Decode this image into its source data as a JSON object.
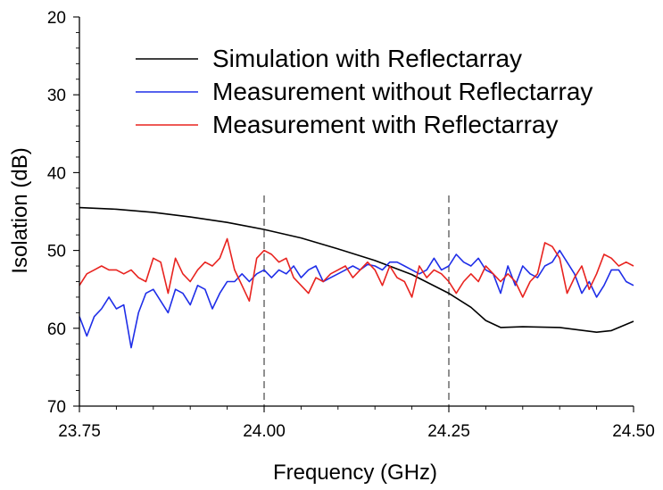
{
  "chart_data": {
    "type": "line",
    "title": "",
    "xlabel": "Frequency (GHz)",
    "ylabel": "Isolation (dB)",
    "xlim": [
      23.75,
      24.5
    ],
    "ylim": [
      20,
      70
    ],
    "y_inverted": true,
    "x_ticks": [
      {
        "value": 23.75,
        "label": "23.75"
      },
      {
        "value": 24.0,
        "label": "24.00"
      },
      {
        "value": 24.25,
        "label": "24.25"
      },
      {
        "value": 24.5,
        "label": "24.50"
      }
    ],
    "y_ticks": [
      {
        "value": 20,
        "label": "20"
      },
      {
        "value": 30,
        "label": "30"
      },
      {
        "value": 40,
        "label": "40"
      },
      {
        "value": 50,
        "label": "50"
      },
      {
        "value": 60,
        "label": "60"
      },
      {
        "value": 70,
        "label": "70"
      }
    ],
    "reference_lines_x": [
      24.0,
      24.25
    ],
    "legend_position": "top-right",
    "series": [
      {
        "name": "Simulation with Reflectarray",
        "color": "#000000",
        "x": [
          23.75,
          23.8,
          23.85,
          23.9,
          23.95,
          24.0,
          24.05,
          24.1,
          24.15,
          24.2,
          24.25,
          24.28,
          24.3,
          24.32,
          24.35,
          24.4,
          24.45,
          24.47,
          24.5
        ],
        "y": [
          44.5,
          44.7,
          45.1,
          45.7,
          46.4,
          47.3,
          48.4,
          49.8,
          51.3,
          53.1,
          55.5,
          57.3,
          59.0,
          59.9,
          59.8,
          59.9,
          60.5,
          60.3,
          59.1
        ]
      },
      {
        "name": "Measurement without Reflectarray",
        "color": "#1f2ee8",
        "x": [
          23.75,
          23.76,
          23.77,
          23.78,
          23.79,
          23.8,
          23.81,
          23.82,
          23.83,
          23.84,
          23.85,
          23.86,
          23.87,
          23.88,
          23.89,
          23.9,
          23.91,
          23.92,
          23.93,
          23.94,
          23.95,
          23.96,
          23.97,
          23.98,
          23.99,
          24.0,
          24.01,
          24.02,
          24.03,
          24.04,
          24.05,
          24.06,
          24.07,
          24.08,
          24.09,
          24.1,
          24.11,
          24.12,
          24.13,
          24.14,
          24.15,
          24.16,
          24.17,
          24.18,
          24.19,
          24.2,
          24.21,
          24.22,
          24.23,
          24.24,
          24.25,
          24.26,
          24.27,
          24.28,
          24.29,
          24.3,
          24.31,
          24.32,
          24.33,
          24.34,
          24.35,
          24.36,
          24.37,
          24.38,
          24.39,
          24.4,
          24.41,
          24.42,
          24.43,
          24.44,
          24.45,
          24.46,
          24.47,
          24.48,
          24.49,
          24.5
        ],
        "y": [
          58.5,
          61.0,
          58.5,
          57.5,
          56.0,
          57.5,
          57.0,
          62.5,
          58.0,
          55.5,
          55.0,
          56.5,
          58.0,
          55.0,
          55.5,
          57.0,
          54.5,
          55.0,
          57.5,
          55.5,
          54.0,
          54.0,
          53.0,
          54.0,
          53.0,
          52.5,
          53.5,
          52.5,
          53.0,
          52.0,
          53.5,
          52.5,
          52.0,
          54.0,
          53.5,
          53.0,
          52.5,
          52.0,
          52.5,
          51.8,
          52.0,
          52.5,
          51.5,
          51.5,
          52.0,
          52.5,
          53.0,
          52.5,
          51.0,
          52.5,
          52.0,
          50.5,
          51.5,
          52.0,
          51.0,
          52.5,
          53.0,
          55.5,
          52.0,
          54.5,
          52.0,
          53.0,
          53.5,
          52.0,
          51.5,
          50.0,
          51.5,
          53.0,
          55.5,
          54.0,
          56.0,
          54.5,
          52.5,
          52.5,
          54.0,
          54.5
        ]
      },
      {
        "name": "Measurement with Reflectarray",
        "color": "#e8231f",
        "x": [
          23.75,
          23.76,
          23.77,
          23.78,
          23.79,
          23.8,
          23.81,
          23.82,
          23.83,
          23.84,
          23.85,
          23.86,
          23.87,
          23.88,
          23.89,
          23.9,
          23.91,
          23.92,
          23.93,
          23.94,
          23.95,
          23.96,
          23.97,
          23.98,
          23.99,
          24.0,
          24.01,
          24.02,
          24.03,
          24.04,
          24.05,
          24.06,
          24.07,
          24.08,
          24.09,
          24.1,
          24.11,
          24.12,
          24.13,
          24.14,
          24.15,
          24.16,
          24.17,
          24.18,
          24.19,
          24.2,
          24.21,
          24.22,
          24.23,
          24.24,
          24.25,
          24.26,
          24.27,
          24.28,
          24.29,
          24.3,
          24.31,
          24.32,
          24.33,
          24.34,
          24.35,
          24.36,
          24.37,
          24.38,
          24.39,
          24.4,
          24.41,
          24.42,
          24.43,
          24.44,
          24.45,
          24.46,
          24.47,
          24.48,
          24.49,
          24.5
        ],
        "y": [
          54.5,
          53.0,
          52.5,
          52.0,
          52.5,
          52.5,
          53.0,
          52.5,
          53.5,
          54.0,
          51.0,
          51.5,
          55.5,
          51.0,
          53.0,
          54.0,
          52.5,
          51.5,
          52.0,
          51.0,
          48.5,
          52.5,
          54.5,
          56.5,
          51.0,
          50.0,
          50.5,
          51.5,
          51.0,
          53.5,
          54.5,
          55.5,
          53.5,
          54.0,
          53.0,
          52.5,
          52.0,
          53.5,
          52.5,
          51.5,
          52.5,
          54.5,
          52.0,
          53.5,
          54.0,
          56.0,
          52.0,
          53.5,
          52.5,
          53.0,
          54.0,
          55.5,
          54.0,
          53.0,
          54.0,
          52.0,
          53.0,
          54.0,
          53.0,
          54.0,
          56.0,
          54.0,
          53.0,
          49.0,
          49.5,
          51.0,
          55.5,
          53.5,
          52.0,
          55.0,
          53.0,
          50.5,
          51.0,
          52.0,
          51.5,
          52.0
        ]
      }
    ]
  }
}
